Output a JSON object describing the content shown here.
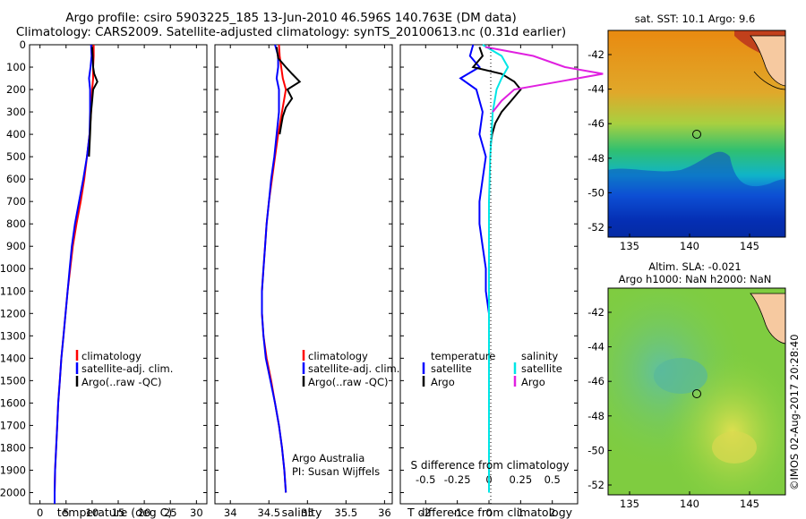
{
  "title_line1": "Argo profile: csiro 5903225_185 13-Jun-2010 46.596S 140.763E (DM data)",
  "title_line2": "Climatology: CARS2009. Satellite-adjusted climatology: synTS_20100613.nc (0.31d earlier)",
  "colors": {
    "climatology": "#ff0000",
    "satellite": "#0000ff",
    "argo": "#000000",
    "salinity_sat": "#00e6e6",
    "salinity_argo": "#e020e0"
  },
  "chart_data": [
    {
      "type": "line",
      "xlabel": "temperature (deg C)",
      "ylim": [
        2050,
        0
      ],
      "xlim": [
        -2,
        32
      ],
      "xticks": [
        0,
        5,
        10,
        15,
        20,
        25,
        30
      ],
      "yticks": [
        0,
        100,
        200,
        300,
        400,
        500,
        600,
        700,
        800,
        900,
        1000,
        1100,
        1200,
        1300,
        1400,
        1500,
        1600,
        1700,
        1800,
        1900,
        2000
      ],
      "legend": [
        "climatology",
        "satellite-adj. clim.",
        "Argo(..raw -QC)"
      ],
      "series": [
        {
          "name": "climatology",
          "x": [
            10.3,
            10.3,
            10.2,
            10.2,
            10.0,
            9.8,
            9.5,
            9.0,
            8.5,
            7.8,
            7.0,
            6.3,
            5.8,
            5.3,
            4.9,
            4.5,
            4.1,
            3.8,
            3.5,
            3.3,
            3.1,
            2.9,
            2.8,
            2.8
          ],
          "y": [
            0,
            50,
            100,
            150,
            200,
            300,
            400,
            500,
            600,
            700,
            800,
            900,
            1000,
            1100,
            1200,
            1300,
            1400,
            1500,
            1600,
            1700,
            1800,
            1900,
            2000,
            2050
          ]
        },
        {
          "name": "satellite-adj. clim.",
          "x": [
            9.8,
            9.9,
            9.7,
            9.4,
            9.6,
            9.6,
            9.5,
            9.0,
            8.3,
            7.5,
            6.7,
            6.1,
            5.7,
            5.3,
            4.9,
            4.5,
            4.1,
            3.8,
            3.5,
            3.3,
            3.1,
            2.9,
            2.8,
            2.8
          ],
          "y": [
            0,
            50,
            100,
            150,
            200,
            300,
            400,
            500,
            600,
            700,
            800,
            900,
            1000,
            1100,
            1200,
            1300,
            1400,
            1500,
            1600,
            1700,
            1800,
            1900,
            2000,
            2050
          ]
        },
        {
          "name": "Argo(..raw -QC)",
          "x": [
            10.0,
            10.1,
            10.2,
            10.4,
            11.0,
            10.2,
            10.0,
            9.8,
            9.7,
            9.6,
            9.5,
            9.4
          ],
          "y": [
            10,
            50,
            100,
            130,
            165,
            200,
            250,
            300,
            350,
            400,
            450,
            500
          ]
        }
      ]
    },
    {
      "type": "line",
      "xlabel": "salinity",
      "ylim": [
        2050,
        0
      ],
      "xlim": [
        33.8,
        36.1
      ],
      "xticks": [
        34,
        34.5,
        35,
        35.5,
        36
      ],
      "legend": [
        "climatology",
        "satellite-adj. clim.",
        "Argo(..raw -QC)"
      ],
      "annotation": [
        "Argo Australia",
        "PI: Susan Wijffels"
      ],
      "series": [
        {
          "name": "climatology",
          "x": [
            34.63,
            34.64,
            34.66,
            34.68,
            34.72,
            34.67,
            34.62,
            34.58,
            34.54,
            34.5,
            34.47,
            34.45,
            34.43,
            34.41,
            34.41,
            34.43,
            34.47,
            34.53,
            34.58,
            34.63,
            34.67,
            34.7,
            34.72
          ],
          "y": [
            0,
            50,
            100,
            150,
            200,
            300,
            400,
            500,
            600,
            700,
            800,
            900,
            1000,
            1100,
            1200,
            1300,
            1400,
            1500,
            1600,
            1700,
            1800,
            1900,
            2000
          ]
        },
        {
          "name": "satellite-adj. clim.",
          "x": [
            34.58,
            34.62,
            34.62,
            34.6,
            34.63,
            34.63,
            34.6,
            34.57,
            34.53,
            34.5,
            34.47,
            34.45,
            34.43,
            34.41,
            34.41,
            34.43,
            34.46,
            34.52,
            34.58,
            34.63,
            34.67,
            34.7,
            34.72
          ],
          "y": [
            0,
            50,
            100,
            150,
            200,
            300,
            400,
            500,
            600,
            700,
            800,
            900,
            1000,
            1100,
            1200,
            1300,
            1400,
            1500,
            1600,
            1700,
            1800,
            1900,
            2000
          ]
        },
        {
          "name": "Argo(..raw -QC)",
          "x": [
            34.6,
            34.62,
            34.72,
            34.8,
            34.9,
            34.74,
            34.8,
            34.72,
            34.68,
            34.66,
            34.64
          ],
          "y": [
            10,
            60,
            100,
            130,
            165,
            200,
            240,
            280,
            320,
            360,
            400
          ]
        }
      ]
    },
    {
      "type": "line",
      "xlabel": "T difference from climatology",
      "xlabel2": "S difference from climatology",
      "ylim": [
        2050,
        0
      ],
      "xlim": [
        -2.8,
        2.8
      ],
      "xticks": [
        -2,
        -1,
        0,
        1,
        2
      ],
      "xticks2": [
        "-0.5",
        "-0.25",
        "0",
        "0.25",
        "0.5"
      ],
      "legend_groups": {
        "temperature": "temperature",
        "salinity": "salinity",
        "items": [
          "satellite",
          "Argo"
        ]
      },
      "series": [
        {
          "name": "temperature satellite",
          "x": [
            -0.5,
            -0.6,
            -0.3,
            -0.9,
            -0.4,
            -0.2,
            -0.3,
            -0.1,
            -0.2,
            -0.3,
            -0.3,
            -0.2,
            -0.1,
            -0.1,
            0,
            0,
            0,
            0,
            0,
            0,
            0,
            0
          ],
          "y": [
            0,
            50,
            100,
            150,
            200,
            300,
            400,
            500,
            600,
            700,
            800,
            900,
            1000,
            1100,
            1200,
            1300,
            1400,
            1500,
            1600,
            1700,
            1800,
            2000
          ]
        },
        {
          "name": "temperature Argo",
          "x": [
            -0.3,
            -0.2,
            -0.5,
            0.4,
            0.8,
            1.0,
            0.7,
            0.4,
            0.2,
            0.1,
            0.05
          ],
          "y": [
            10,
            50,
            100,
            130,
            165,
            200,
            250,
            300,
            350,
            400,
            450
          ]
        },
        {
          "name": "salinity satellite",
          "x": [
            -0.05,
            0.1,
            0.15,
            0.1,
            0.06,
            0.03,
            0.02,
            0.01,
            0.005,
            0,
            0,
            0,
            0,
            0,
            0,
            0,
            0,
            0,
            0,
            0,
            0,
            0
          ],
          "y": [
            0,
            50,
            100,
            150,
            200,
            300,
            400,
            500,
            600,
            700,
            800,
            900,
            1000,
            1100,
            1200,
            1300,
            1400,
            1500,
            1600,
            1700,
            1800,
            2000
          ]
        },
        {
          "name": "salinity Argo",
          "x": [
            -0.03,
            0.35,
            0.6,
            0.9,
            0.55,
            0.2,
            0.1,
            0.03
          ],
          "y": [
            10,
            50,
            100,
            130,
            165,
            200,
            250,
            300
          ]
        }
      ]
    }
  ],
  "maps": {
    "sst": {
      "title": "sat. SST: 10.1  Argo: 9.6",
      "lat_ticks": [
        "-42",
        "-44",
        "-46",
        "-48",
        "-50",
        "-52"
      ],
      "lon_ticks": [
        "135",
        "140",
        "145"
      ]
    },
    "sla": {
      "title1": "Altim. SLA: -0.021",
      "title2": "Argo h1000: NaN h2000: NaN",
      "lat_ticks": [
        "-42",
        "-44",
        "-46",
        "-48",
        "-50",
        "-52"
      ],
      "lon_ticks": [
        "135",
        "140",
        "145"
      ]
    },
    "credit": "©IMOS 02-Aug-2017 20:28:40"
  }
}
